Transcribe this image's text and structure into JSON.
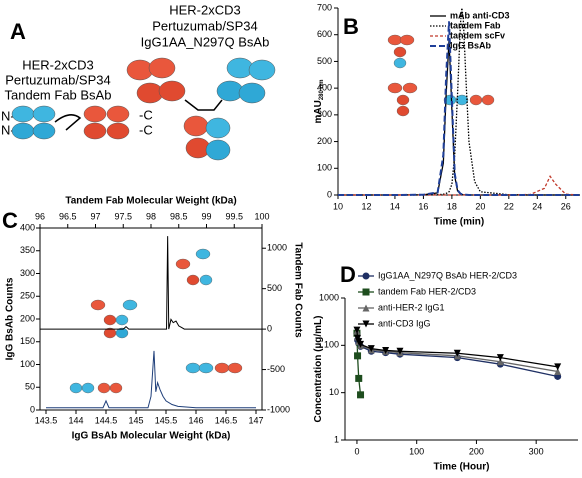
{
  "panel_labels": [
    "A",
    "B",
    "C",
    "D"
  ],
  "diagram": {
    "tandem": {
      "lines": [
        "HER-2xCD3",
        "Pertuzumab/SP34",
        "Tandem Fab BsAb"
      ],
      "termini": [
        "N-",
        "N-",
        "-C",
        "-C"
      ]
    },
    "igg": {
      "lines": [
        "HER-2xCD3",
        "Pertuzumab/SP34",
        "IgG1AA_N297Q BsAb"
      ]
    }
  },
  "chart_data": [
    {
      "type": "line",
      "xlabel": "Time (min)",
      "ylabel": "mAU",
      "ylabel_sub": "280 nm",
      "xlim": [
        10,
        27
      ],
      "xticks": [
        10,
        12,
        14,
        16,
        18,
        20,
        22,
        24,
        26
      ],
      "ylim": [
        0,
        700
      ],
      "yticks": [
        0,
        100,
        200,
        300,
        400,
        500,
        600,
        700
      ],
      "legend": "upper right",
      "x": [
        10,
        12,
        14,
        16,
        17,
        17.4,
        17.6,
        17.8,
        18,
        18.2,
        18.4,
        18.6,
        18.7,
        18.8,
        19,
        19.2,
        19.6,
        20,
        22,
        23.5,
        24.5,
        24.9,
        25.3,
        26,
        27
      ],
      "series": [
        {
          "name": "mAb anti-CD3",
          "color": "#000000",
          "dash": "solid",
          "values": [
            0,
            0,
            0,
            1,
            8,
            120,
            380,
            580,
            320,
            70,
            15,
            4,
            2,
            1,
            0,
            0,
            0,
            0,
            0,
            0,
            0,
            0,
            0,
            0,
            0
          ]
        },
        {
          "name": "tandem Fab",
          "color": "#000000",
          "dash": "dotted",
          "values": [
            0,
            0,
            0,
            0,
            1,
            3,
            6,
            12,
            40,
            150,
            380,
            640,
            700,
            660,
            420,
            200,
            50,
            12,
            1,
            0,
            0,
            0,
            0,
            0,
            0
          ]
        },
        {
          "name": "tandem scFv",
          "color": "#c0392b",
          "dash": "dashed",
          "values": [
            0,
            0,
            0,
            0,
            0,
            0,
            0,
            0,
            0,
            0,
            0,
            0,
            0,
            0,
            0,
            0,
            0,
            0,
            0,
            2,
            25,
            70,
            40,
            3,
            0
          ]
        },
        {
          "name": "IgG BsAb",
          "color": "#1f3f99",
          "dash": "longdash",
          "values": [
            0,
            0,
            0,
            1,
            10,
            150,
            450,
            650,
            360,
            80,
            18,
            5,
            3,
            2,
            1,
            0,
            0,
            0,
            0,
            0,
            0,
            0,
            0,
            0,
            0
          ]
        }
      ]
    },
    {
      "type": "spectrum",
      "xlabel": "IgG BsAb Molecular Weight (kDa)",
      "x2label": "Tandem Fab Molecular Weight (kDa)",
      "ylabel": "IgG BsAb Counts",
      "y2label": "Tandem Fab Counts",
      "xlim": [
        143.4,
        147.1
      ],
      "xticks": [
        143.5,
        144,
        144.5,
        145,
        145.5,
        146,
        146.5,
        147
      ],
      "x2lim": [
        96,
        100
      ],
      "x2ticks": [
        96,
        96.5,
        97,
        97.5,
        98,
        98.5,
        99,
        99.5,
        100
      ],
      "ylim": [
        0,
        400
      ],
      "yticks": [
        0,
        50,
        100,
        150,
        200,
        250,
        300,
        350,
        400
      ],
      "y2lim": [
        -1000,
        1250
      ],
      "y2ticks": [
        -1000,
        -500,
        0,
        500,
        1000
      ],
      "series": [
        {
          "color": "#000000",
          "xaxis": "x2",
          "axis": "y2",
          "x": [
            96,
            97.5,
            97.55,
            97.6,
            97.65,
            98.2,
            98.28,
            98.3,
            98.32,
            98.36,
            98.4,
            98.45,
            98.5,
            98.55,
            98.6,
            100
          ],
          "values": [
            0,
            0,
            30,
            0,
            0,
            0,
            0,
            1150,
            0,
            120,
            80,
            100,
            40,
            20,
            0,
            0
          ]
        },
        {
          "color": "#1f3f7a",
          "xaxis": "x",
          "axis": "y",
          "x": [
            143.5,
            144.45,
            144.5,
            144.55,
            145.2,
            145.25,
            145.3,
            145.33,
            145.36,
            145.4,
            145.45,
            145.5,
            145.6,
            145.7,
            146,
            147
          ],
          "values": [
            5,
            5,
            20,
            5,
            5,
            30,
            130,
            40,
            60,
            45,
            30,
            20,
            12,
            8,
            5,
            5
          ]
        }
      ]
    },
    {
      "type": "line",
      "xlabel": "Time (Hour)",
      "ylabel": "Concentration (µg/mL)",
      "log_y": true,
      "xlim": [
        -20,
        370
      ],
      "xticks": [
        0,
        100,
        200,
        300
      ],
      "ylim": [
        1,
        1000
      ],
      "yticks": [
        1,
        10,
        100,
        1000
      ],
      "legend": "upper right",
      "series": [
        {
          "name": "IgG1AA_N297Q BsAb HER-2/CD3",
          "color": "#1f3064",
          "marker": "circle",
          "x": [
            0,
            1,
            3,
            6,
            24,
            48,
            72,
            168,
            240,
            336
          ],
          "values": [
            180,
            130,
            110,
            95,
            75,
            70,
            65,
            55,
            40,
            22
          ]
        },
        {
          "name": "tandem Fab HER-2/CD3",
          "color": "#1e4d1e",
          "marker": "square",
          "x": [
            0,
            1,
            3,
            6
          ],
          "values": [
            180,
            60,
            20,
            9
          ]
        },
        {
          "name": "anti-HER-2 IgG1",
          "color": "#666666",
          "marker": "triangle",
          "x": [
            0,
            1,
            3,
            6,
            24,
            48,
            72,
            168,
            240,
            336
          ],
          "values": [
            200,
            150,
            120,
            100,
            80,
            75,
            70,
            60,
            45,
            28
          ]
        },
        {
          "name": "anti-CD3 IgG",
          "color": "#000000",
          "marker": "triangle-down",
          "x": [
            0,
            1,
            3,
            6,
            24,
            48,
            72,
            168,
            240,
            336
          ],
          "values": [
            210,
            140,
            120,
            105,
            85,
            78,
            75,
            68,
            55,
            35
          ]
        }
      ]
    }
  ]
}
